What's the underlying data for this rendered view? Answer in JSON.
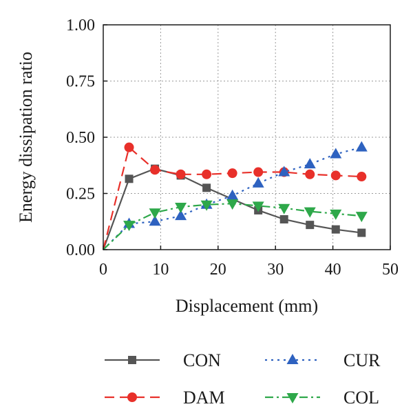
{
  "chart_data": {
    "type": "line",
    "xlabel": "Displacement (mm)",
    "ylabel": "Energy dissipation ratio",
    "xlim": [
      0,
      50
    ],
    "ylim": [
      0,
      1.0
    ],
    "x_ticks": [
      "0",
      "10",
      "20",
      "30",
      "40",
      "50"
    ],
    "y_ticks": [
      "0.00",
      "0.25",
      "0.50",
      "0.75",
      "1.00"
    ],
    "grid": true,
    "legend_position": "bottom",
    "series": [
      {
        "name": "CON",
        "color": "#555555",
        "marker": "square",
        "line_style": "solid",
        "x": [
          0,
          4.5,
          9,
          13.5,
          18,
          27,
          31.5,
          36,
          40.5,
          45
        ],
        "y": [
          0.0,
          0.315,
          0.36,
          0.33,
          0.275,
          0.175,
          0.135,
          0.11,
          0.09,
          0.075
        ]
      },
      {
        "name": "DAM",
        "color": "#e8302a",
        "marker": "circle",
        "line_style": "dashed",
        "x": [
          0,
          4.5,
          9,
          13.5,
          18,
          22.5,
          27,
          31.5,
          36,
          40.5,
          45
        ],
        "y": [
          0.0,
          0.455,
          0.355,
          0.335,
          0.335,
          0.34,
          0.345,
          0.345,
          0.335,
          0.33,
          0.325
        ]
      },
      {
        "name": "CUR",
        "color": "#2e62c0",
        "marker": "triangle-up",
        "line_style": "dotted",
        "x": [
          0,
          4.5,
          9,
          13.5,
          18,
          22.5,
          27,
          31.5,
          36,
          40.5,
          45
        ],
        "y": [
          0.0,
          0.115,
          0.125,
          0.15,
          0.2,
          0.24,
          0.295,
          0.345,
          0.38,
          0.425,
          0.455
        ]
      },
      {
        "name": "COL",
        "color": "#2ea84a",
        "marker": "triangle-down",
        "line_style": "dashdot",
        "x": [
          0,
          4.5,
          9,
          13.5,
          18,
          22.5,
          27,
          31.5,
          36,
          40.5,
          45
        ],
        "y": [
          0.0,
          0.11,
          0.165,
          0.19,
          0.2,
          0.205,
          0.195,
          0.185,
          0.17,
          0.16,
          0.15
        ]
      }
    ]
  }
}
